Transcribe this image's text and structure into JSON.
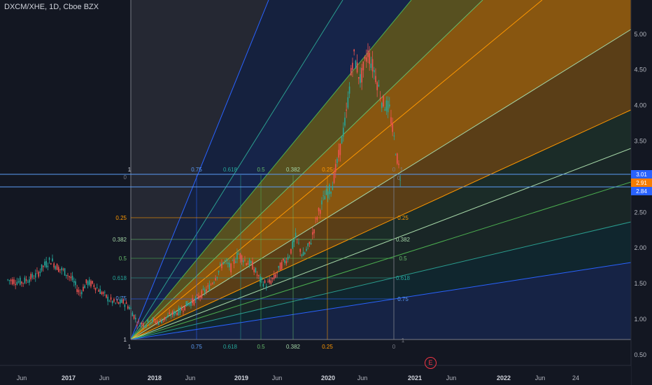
{
  "header": {
    "symbol_line": "DXCM/XHE, 1D, Cboe BZX"
  },
  "event_marker": {
    "label": "E"
  },
  "colors": {
    "background": "#131722",
    "candle_up": "#26a69a",
    "candle_down": "#ef5350",
    "fan_blue": "#2962ff",
    "fan_teal": "#00897b",
    "fan_green": "#4caf50",
    "fan_orange": "#ff9800",
    "price_tag_blue": "#2962ff",
    "price_tag_orange": "#f57c00"
  },
  "chart_data": {
    "type": "candlestick",
    "title": "DXCM/XHE, 1D, Cboe BZX",
    "x_axis": {
      "ticks": [
        "Jun",
        "2017",
        "Jun",
        "2018",
        "Jun",
        "2019",
        "Jun",
        "2020",
        "Jun",
        "2021",
        "Jun",
        "2022",
        "Jun",
        "24"
      ],
      "range": [
        "2016-04",
        "2022-11"
      ]
    },
    "y_axis": {
      "ticks": [
        "5.00",
        "4.50",
        "4.00",
        "3.50",
        "3.00",
        "2.50",
        "2.00",
        "1.50",
        "1.00",
        "0.50"
      ],
      "range": [
        0.5,
        5.0
      ]
    },
    "price_labels": [
      "3.01",
      "2.91",
      "2.84"
    ],
    "price_series": [
      {
        "x": "2016-05",
        "y": 1.55
      },
      {
        "x": "2016-07",
        "y": 1.52
      },
      {
        "x": "2016-09",
        "y": 1.62
      },
      {
        "x": "2016-10",
        "y": 1.75
      },
      {
        "x": "2016-11",
        "y": 1.83
      },
      {
        "x": "2016-12",
        "y": 1.72
      },
      {
        "x": "2017-01",
        "y": 1.66
      },
      {
        "x": "2017-02",
        "y": 1.55
      },
      {
        "x": "2017-03",
        "y": 1.36
      },
      {
        "x": "2017-04",
        "y": 1.52
      },
      {
        "x": "2017-05",
        "y": 1.48
      },
      {
        "x": "2017-06",
        "y": 1.38
      },
      {
        "x": "2017-07",
        "y": 1.28
      },
      {
        "x": "2017-08",
        "y": 1.22
      },
      {
        "x": "2017-09",
        "y": 1.24
      },
      {
        "x": "2017-10",
        "y": 1.16
      },
      {
        "x": "2017-11",
        "y": 0.95
      },
      {
        "x": "2017-12",
        "y": 0.93
      },
      {
        "x": "2018-01",
        "y": 0.98
      },
      {
        "x": "2018-02",
        "y": 0.96
      },
      {
        "x": "2018-03",
        "y": 1.02
      },
      {
        "x": "2018-04",
        "y": 1.08
      },
      {
        "x": "2018-05",
        "y": 1.12
      },
      {
        "x": "2018-06",
        "y": 1.22
      },
      {
        "x": "2018-07",
        "y": 1.26
      },
      {
        "x": "2018-08",
        "y": 1.36
      },
      {
        "x": "2018-09",
        "y": 1.45
      },
      {
        "x": "2018-10",
        "y": 1.62
      },
      {
        "x": "2018-11",
        "y": 1.82
      },
      {
        "x": "2018-12",
        "y": 1.72
      },
      {
        "x": "2019-01",
        "y": 1.92
      },
      {
        "x": "2019-02",
        "y": 1.82
      },
      {
        "x": "2019-03",
        "y": 1.75
      },
      {
        "x": "2019-04",
        "y": 1.55
      },
      {
        "x": "2019-05",
        "y": 1.48
      },
      {
        "x": "2019-06",
        "y": 1.58
      },
      {
        "x": "2019-07",
        "y": 1.76
      },
      {
        "x": "2019-08",
        "y": 1.88
      },
      {
        "x": "2019-09",
        "y": 2.15
      },
      {
        "x": "2019-10",
        "y": 1.88
      },
      {
        "x": "2019-11",
        "y": 2.06
      },
      {
        "x": "2019-12",
        "y": 2.45
      },
      {
        "x": "2020-01",
        "y": 2.72
      },
      {
        "x": "2020-02",
        "y": 2.85
      },
      {
        "x": "2020-03",
        "y": 3.3
      },
      {
        "x": "2020-04",
        "y": 3.85
      },
      {
        "x": "2020-05",
        "y": 4.72
      },
      {
        "x": "2020-06",
        "y": 4.35
      },
      {
        "x": "2020-07",
        "y": 4.75
      },
      {
        "x": "2020-08",
        "y": 4.45
      },
      {
        "x": "2020-09",
        "y": 4.05
      },
      {
        "x": "2020-10",
        "y": 3.95
      },
      {
        "x": "2020-11",
        "y": 3.3
      },
      {
        "x": "2020-11-20",
        "y": 2.95
      }
    ],
    "fib_fan": {
      "levels_upper": [
        "0.75",
        "0.618",
        "0.5",
        "0.382",
        "0.25",
        "0"
      ],
      "levels_side": [
        "0",
        "0.25",
        "0.382",
        "0.5",
        "0.618",
        "0.75",
        "1"
      ],
      "levels_bottom": [
        "0.75",
        "0.618",
        "0.5",
        "0.382",
        "0.25",
        "0"
      ],
      "level_right_upper": "0",
      "levels_right": [
        "0.25",
        "0.382",
        "0.5",
        "0.618",
        "0.75"
      ],
      "corner_labels": [
        "1",
        "1",
        "1",
        "1"
      ]
    }
  }
}
